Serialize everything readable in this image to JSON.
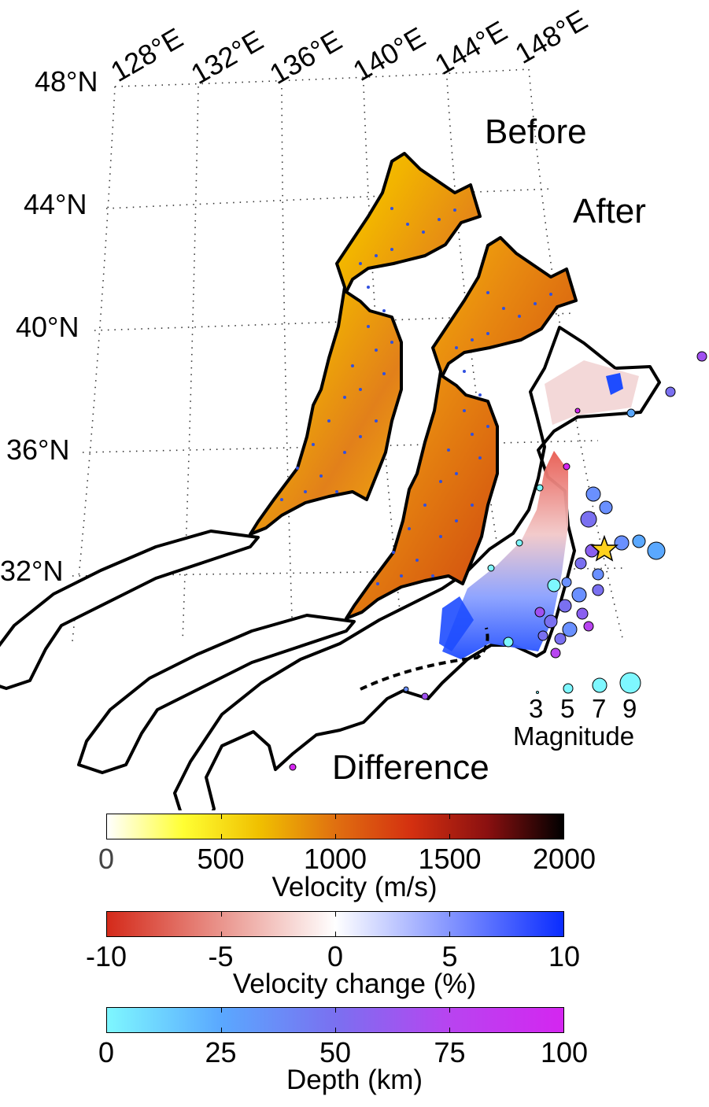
{
  "map": {
    "lon_labels": [
      "128°E",
      "132°E",
      "136°E",
      "140°E",
      "144°E",
      "148°E"
    ],
    "lat_labels": [
      "48°N",
      "44°N",
      "40°N",
      "36°N",
      "32°N"
    ],
    "panel_labels": {
      "before": "Before",
      "after": "After",
      "difference": "Difference"
    },
    "magnitude_legend": {
      "values": [
        "3",
        "5",
        "7",
        "9"
      ],
      "title": "Magnitude"
    }
  },
  "colorbars": {
    "velocity": {
      "ticks": [
        "0",
        "500",
        "1000",
        "1500",
        "2000"
      ],
      "title": "Velocity (m/s)",
      "range": [
        0,
        2000
      ],
      "colors": [
        "#ffffff",
        "#ffff33",
        "#f0c000",
        "#e07010",
        "#d43010",
        "#8a1010",
        "#000000"
      ]
    },
    "velocity_change": {
      "ticks": [
        "-10",
        "-5",
        "0",
        "5",
        "10"
      ],
      "title": "Velocity change (%)",
      "range": [
        -10,
        10
      ],
      "colors": [
        "#d42a1a",
        "#ffffff",
        "#0a2cff"
      ]
    },
    "depth": {
      "ticks": [
        "0",
        "25",
        "50",
        "75",
        "100"
      ],
      "title": "Depth (km)",
      "range": [
        0,
        100
      ],
      "colors": [
        "#7ef7ff",
        "#5aa8ff",
        "#7a70f0",
        "#b844f0",
        "#d426f0"
      ]
    }
  }
}
